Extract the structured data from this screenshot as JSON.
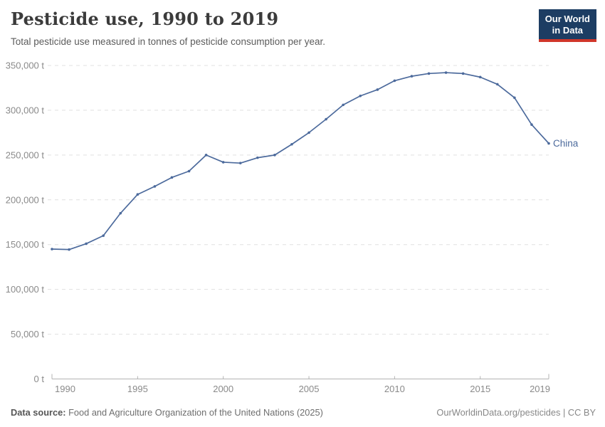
{
  "header": {
    "title": "Pesticide use, 1990 to 2019",
    "subtitle": "Total pesticide use measured in tonnes of pesticide consumption per year."
  },
  "logo": {
    "line1": "Our World",
    "line2": "in Data",
    "bg_color": "#1d3d63",
    "accent_color": "#d0362a"
  },
  "chart_data": {
    "type": "line",
    "title": "Pesticide use, 1990 to 2019",
    "xlabel": "",
    "ylabel": "tonnes of pesticide consumption per year",
    "ylim": [
      0,
      350000
    ],
    "grid": "horizontal-dashed",
    "legend_position": "line-end",
    "x": [
      1990,
      1991,
      1992,
      1993,
      1994,
      1995,
      1996,
      1997,
      1998,
      1999,
      2000,
      2001,
      2002,
      2003,
      2004,
      2005,
      2006,
      2007,
      2008,
      2009,
      2010,
      2011,
      2012,
      2013,
      2014,
      2015,
      2016,
      2017,
      2018,
      2019
    ],
    "series": [
      {
        "name": "China",
        "color": "#4C6A9C",
        "values": [
          145000,
          144500,
          151000,
          160000,
          185000,
          206000,
          215000,
          225000,
          232000,
          250000,
          242000,
          241000,
          247000,
          250000,
          262000,
          275000,
          290000,
          306000,
          316000,
          323000,
          333000,
          338000,
          341000,
          342000,
          341000,
          337000,
          329000,
          314000,
          284000,
          263000
        ]
      }
    ],
    "yticks": [
      {
        "value": 0,
        "label": "0 t"
      },
      {
        "value": 50000,
        "label": "50,000 t"
      },
      {
        "value": 100000,
        "label": "100,000 t"
      },
      {
        "value": 150000,
        "label": "150,000 t"
      },
      {
        "value": 200000,
        "label": "200,000 t"
      },
      {
        "value": 250000,
        "label": "250,000 t"
      },
      {
        "value": 300000,
        "label": "300,000 t"
      },
      {
        "value": 350000,
        "label": "350,000 t"
      }
    ],
    "xticks": [
      {
        "value": 1990,
        "label": "1990"
      },
      {
        "value": 1995,
        "label": "1995"
      },
      {
        "value": 2000,
        "label": "2000"
      },
      {
        "value": 2005,
        "label": "2005"
      },
      {
        "value": 2010,
        "label": "2010"
      },
      {
        "value": 2015,
        "label": "2015"
      },
      {
        "value": 2019,
        "label": "2019"
      }
    ],
    "colors": {
      "grid": "#e0e0e0",
      "axis": "#b3b3b3",
      "tick_label": "#8a8a8a"
    }
  },
  "footer": {
    "source_label": "Data source:",
    "source_text": "Food and Agriculture Organization of the United Nations (2025)",
    "credit": "OurWorldinData.org/pesticides | CC BY"
  }
}
